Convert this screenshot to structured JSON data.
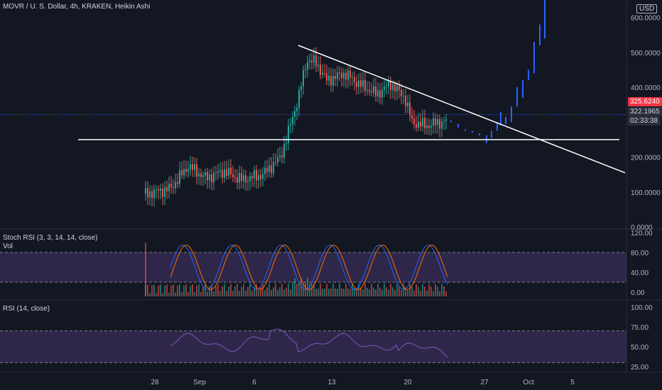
{
  "header": {
    "symbol_line": "MOVR / U. S. Dollar, 4h, KRAKEN, Heikin Ashi",
    "stoch_label": "Stoch RSI (3, 3, 14, 14, close)",
    "vol_label": "Vol",
    "rsi_label": "RSI (14, close)"
  },
  "price_axis": {
    "currency": "USD",
    "ticks": [
      "600.0000",
      "500.0000",
      "400.0000",
      "300.0000",
      "200.0000",
      "100.0000",
      "0.0000"
    ],
    "last_price": "325.6240",
    "current_price": "322.1965",
    "countdown": "02:33:38",
    "colors": {
      "last": "#f23645",
      "current": "#2a2e39"
    }
  },
  "stoch_axis": {
    "ticks": [
      "120.00",
      "80.00",
      "40.00",
      "0.00"
    ]
  },
  "rsi_axis": {
    "ticks": [
      "100.00",
      "75.00",
      "50.00",
      "25.00"
    ]
  },
  "time_axis": {
    "ticks": [
      "28",
      "Sep",
      "6",
      "13",
      "20",
      "27",
      "Oct",
      "5"
    ]
  },
  "chart_data": {
    "type": "candlestick",
    "price_ylim": [
      0,
      650
    ],
    "candle_colors": {
      "up": "#26a69a",
      "down": "#ef5350",
      "projection": "#2962ff"
    },
    "trendlines": [
      {
        "name": "descending resistance",
        "from": [
          420,
          520
        ],
        "to": [
          880,
          155
        ],
        "unit": "x_px_price"
      },
      {
        "name": "horizontal support",
        "from": [
          110,
          250
        ],
        "to": [
          872,
          250
        ],
        "unit": "x_px_price"
      }
    ],
    "stoch_bands": [
      20,
      80
    ],
    "rsi_bands": [
      30,
      70
    ]
  }
}
